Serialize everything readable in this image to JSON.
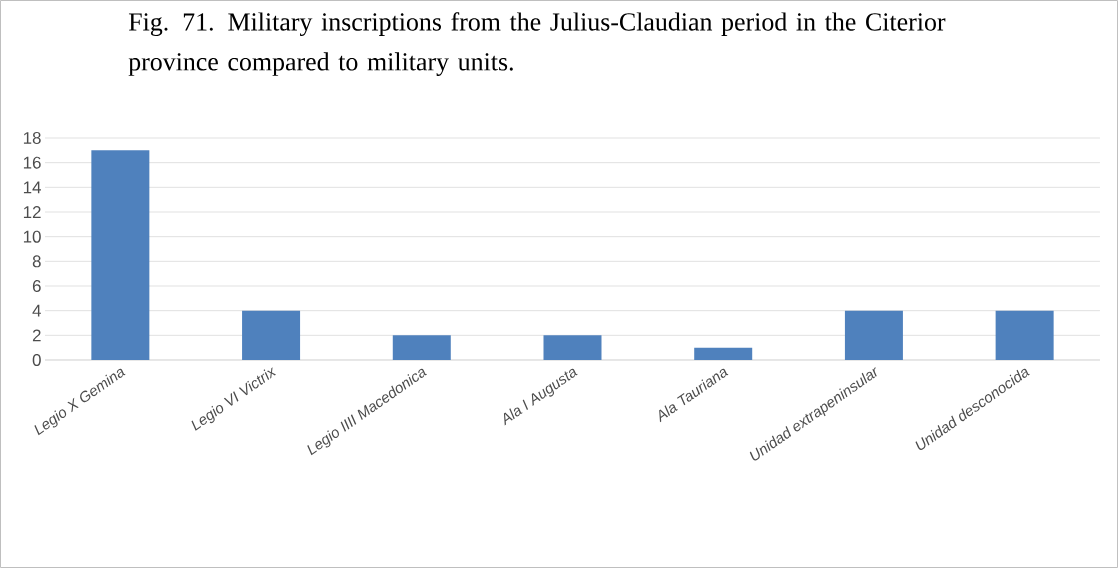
{
  "chart_data": {
    "type": "bar",
    "title": "Fig. 71. Military inscriptions from the Julius-Claudian period in the Citerior province compared to military units.",
    "categories": [
      "Legio X Gemina",
      "Legio VI Victrix",
      "Legio IIII Macedonica",
      "Ala I Augusta",
      "Ala Tauriana",
      "Unidad extrapeninsular",
      "Unidad desconocida"
    ],
    "values": [
      17,
      4,
      2,
      2,
      1,
      4,
      4
    ],
    "color": "#4f81bd",
    "ylim": [
      0,
      18
    ],
    "yticks": [
      0,
      2,
      4,
      6,
      8,
      10,
      12,
      14,
      16,
      18
    ],
    "grid": "y"
  }
}
